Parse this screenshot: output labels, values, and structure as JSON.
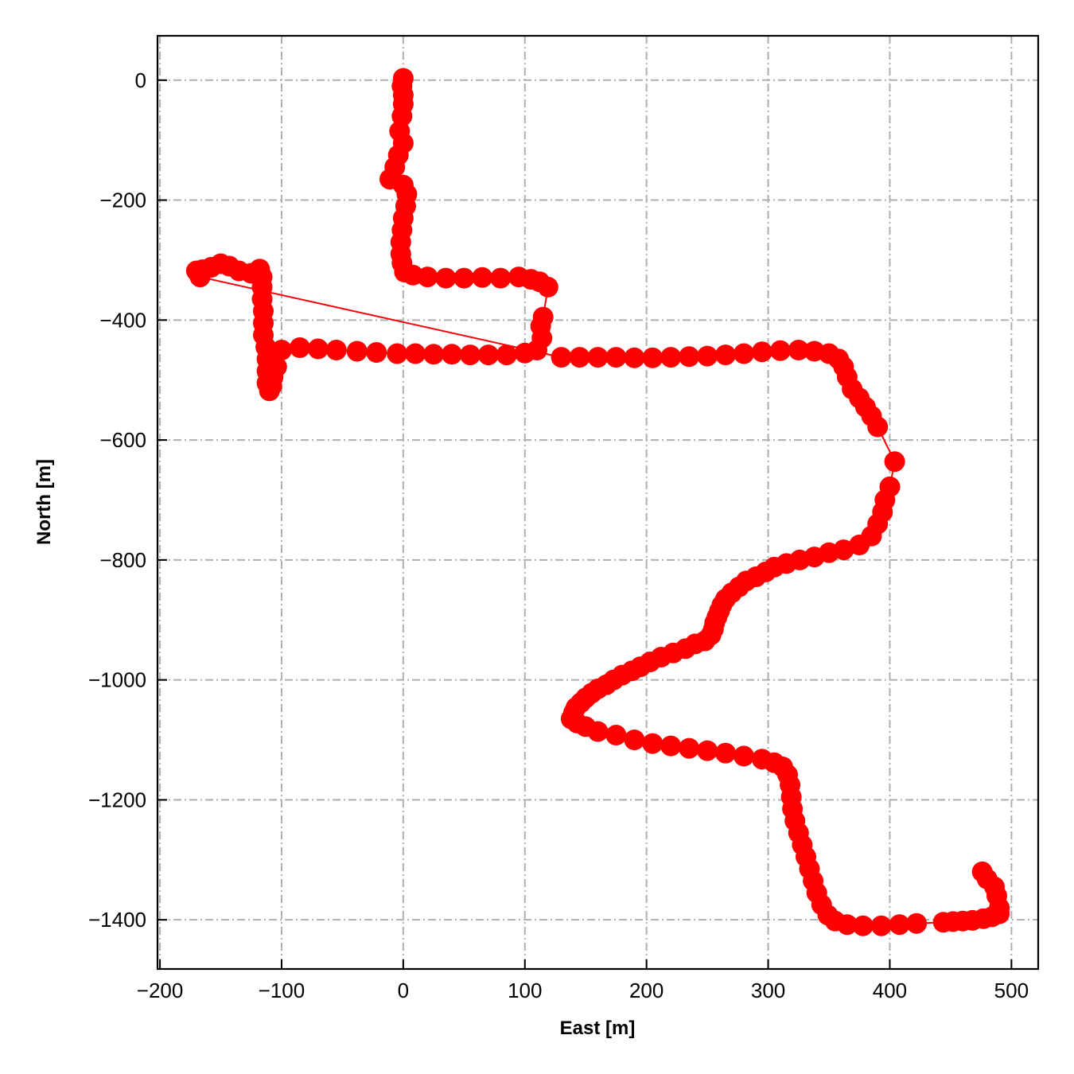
{
  "chart_data": {
    "type": "line",
    "title": "",
    "xlabel": "East [m]",
    "ylabel": "North [m]",
    "xlim": [
      -202,
      522
    ],
    "ylim": [
      -1482,
      74
    ],
    "xticks": [
      -200,
      -100,
      0,
      100,
      200,
      300,
      400,
      500
    ],
    "yticks": [
      0,
      -200,
      -400,
      -600,
      -800,
      -1000,
      -1200,
      -1400
    ],
    "xtick_labels": [
      "−200",
      "−100",
      "0",
      "100",
      "200",
      "300",
      "400",
      "500"
    ],
    "ytick_labels": [
      "0",
      "−200",
      "−400",
      "−600",
      "−800",
      "−1000",
      "−1200",
      "−1400"
    ],
    "grid": true,
    "grid_style": "dashdot",
    "marker": "circle",
    "series": [
      {
        "color": "#ff0000",
        "points": [
          [
            0,
            3
          ],
          [
            -1,
            -10
          ],
          [
            0,
            -25
          ],
          [
            0,
            -40
          ],
          [
            -1,
            -60
          ],
          [
            -3,
            -85
          ],
          [
            0,
            -105
          ],
          [
            -4,
            -125
          ],
          [
            -7,
            -145
          ],
          [
            -11,
            -165
          ],
          [
            0,
            -175
          ],
          [
            3,
            -190
          ],
          [
            2,
            -210
          ],
          [
            0,
            -230
          ],
          [
            -1,
            -250
          ],
          [
            -2,
            -270
          ],
          [
            -2,
            -290
          ],
          [
            -1,
            -305
          ],
          [
            1,
            -320
          ],
          [
            8,
            -325
          ],
          [
            20,
            -328
          ],
          [
            35,
            -330
          ],
          [
            50,
            -330
          ],
          [
            65,
            -329
          ],
          [
            80,
            -330
          ],
          [
            95,
            -328
          ],
          [
            105,
            -332
          ],
          [
            112,
            -336
          ],
          [
            119,
            -345
          ],
          [
            115,
            -395
          ],
          [
            113,
            -410
          ],
          [
            114,
            -430
          ],
          [
            110,
            -450
          ],
          [
            100,
            -455
          ],
          [
            85,
            -458
          ],
          [
            70,
            -458
          ],
          [
            55,
            -458
          ],
          [
            40,
            -457
          ],
          [
            25,
            -457
          ],
          [
            10,
            -456
          ],
          [
            -5,
            -456
          ],
          [
            -22,
            -454
          ],
          [
            -38,
            -452
          ],
          [
            -55,
            -450
          ],
          [
            -70,
            -448
          ],
          [
            -85,
            -446
          ],
          [
            -100,
            -450
          ],
          [
            -106,
            -462
          ],
          [
            -104,
            -478
          ],
          [
            -107,
            -495
          ],
          [
            -108,
            -510
          ],
          [
            -110,
            -518
          ],
          [
            -112,
            -505
          ],
          [
            -112,
            -485
          ],
          [
            -112,
            -465
          ],
          [
            -113,
            -445
          ],
          [
            -115,
            -425
          ],
          [
            -115,
            -405
          ],
          [
            -115,
            -385
          ],
          [
            -116,
            -365
          ],
          [
            -116,
            -345
          ],
          [
            -116,
            -328
          ],
          [
            -118,
            -315
          ],
          [
            -125,
            -322
          ],
          [
            -135,
            -318
          ],
          [
            -143,
            -310
          ],
          [
            -150,
            -306
          ],
          [
            -158,
            -312
          ],
          [
            -165,
            -316
          ],
          [
            -170,
            -318
          ],
          [
            -167,
            -328
          ],
          [
            130,
            -462
          ],
          [
            145,
            -462
          ],
          [
            160,
            -462
          ],
          [
            175,
            -462
          ],
          [
            190,
            -463
          ],
          [
            205,
            -463
          ],
          [
            220,
            -462
          ],
          [
            235,
            -461
          ],
          [
            250,
            -460
          ],
          [
            265,
            -458
          ],
          [
            280,
            -456
          ],
          [
            295,
            -453
          ],
          [
            310,
            -451
          ],
          [
            325,
            -450
          ],
          [
            338,
            -452
          ],
          [
            350,
            -456
          ],
          [
            358,
            -465
          ],
          [
            362,
            -478
          ],
          [
            365,
            -495
          ],
          [
            369,
            -515
          ],
          [
            375,
            -530
          ],
          [
            380,
            -545
          ],
          [
            385,
            -560
          ],
          [
            390,
            -578
          ],
          [
            404,
            -636
          ],
          [
            400,
            -678
          ],
          [
            396,
            -700
          ],
          [
            394,
            -720
          ],
          [
            390,
            -740
          ],
          [
            385,
            -760
          ],
          [
            375,
            -775
          ],
          [
            362,
            -783
          ],
          [
            350,
            -788
          ],
          [
            338,
            -795
          ],
          [
            326,
            -800
          ],
          [
            315,
            -806
          ],
          [
            305,
            -812
          ],
          [
            298,
            -820
          ],
          [
            290,
            -828
          ],
          [
            282,
            -835
          ],
          [
            276,
            -845
          ],
          [
            270,
            -855
          ],
          [
            265,
            -865
          ],
          [
            262,
            -875
          ],
          [
            260,
            -885
          ],
          [
            258,
            -895
          ],
          [
            256,
            -905
          ],
          [
            255,
            -915
          ],
          [
            253,
            -925
          ],
          [
            248,
            -935
          ],
          [
            240,
            -940
          ],
          [
            232,
            -948
          ],
          [
            222,
            -955
          ],
          [
            212,
            -962
          ],
          [
            203,
            -970
          ],
          [
            195,
            -978
          ],
          [
            188,
            -985
          ],
          [
            180,
            -992
          ],
          [
            173,
            -1000
          ],
          [
            167,
            -1008
          ],
          [
            160,
            -1015
          ],
          [
            155,
            -1022
          ],
          [
            150,
            -1030
          ],
          [
            146,
            -1038
          ],
          [
            142,
            -1046
          ],
          [
            140,
            -1055
          ],
          [
            138,
            -1065
          ],
          [
            143,
            -1072
          ],
          [
            150,
            -1078
          ],
          [
            160,
            -1086
          ],
          [
            175,
            -1092
          ],
          [
            190,
            -1100
          ],
          [
            205,
            -1106
          ],
          [
            220,
            -1110
          ],
          [
            235,
            -1114
          ],
          [
            250,
            -1118
          ],
          [
            265,
            -1122
          ],
          [
            280,
            -1127
          ],
          [
            295,
            -1132
          ],
          [
            305,
            -1138
          ],
          [
            312,
            -1145
          ],
          [
            316,
            -1158
          ],
          [
            318,
            -1175
          ],
          [
            319,
            -1195
          ],
          [
            320,
            -1215
          ],
          [
            322,
            -1235
          ],
          [
            325,
            -1255
          ],
          [
            328,
            -1275
          ],
          [
            331,
            -1295
          ],
          [
            334,
            -1315
          ],
          [
            337,
            -1335
          ],
          [
            340,
            -1355
          ],
          [
            344,
            -1375
          ],
          [
            349,
            -1392
          ],
          [
            355,
            -1402
          ],
          [
            365,
            -1408
          ],
          [
            378,
            -1410
          ],
          [
            393,
            -1410
          ],
          [
            408,
            -1408
          ],
          [
            422,
            -1406
          ],
          [
            444,
            -1404
          ],
          [
            452,
            -1403
          ],
          [
            460,
            -1402
          ],
          [
            468,
            -1401
          ],
          [
            477,
            -1398
          ],
          [
            484,
            -1395
          ],
          [
            490,
            -1390
          ],
          [
            490,
            -1380
          ],
          [
            488,
            -1360
          ],
          [
            486,
            -1345
          ],
          [
            480,
            -1332
          ],
          [
            476,
            -1320
          ]
        ]
      }
    ]
  }
}
